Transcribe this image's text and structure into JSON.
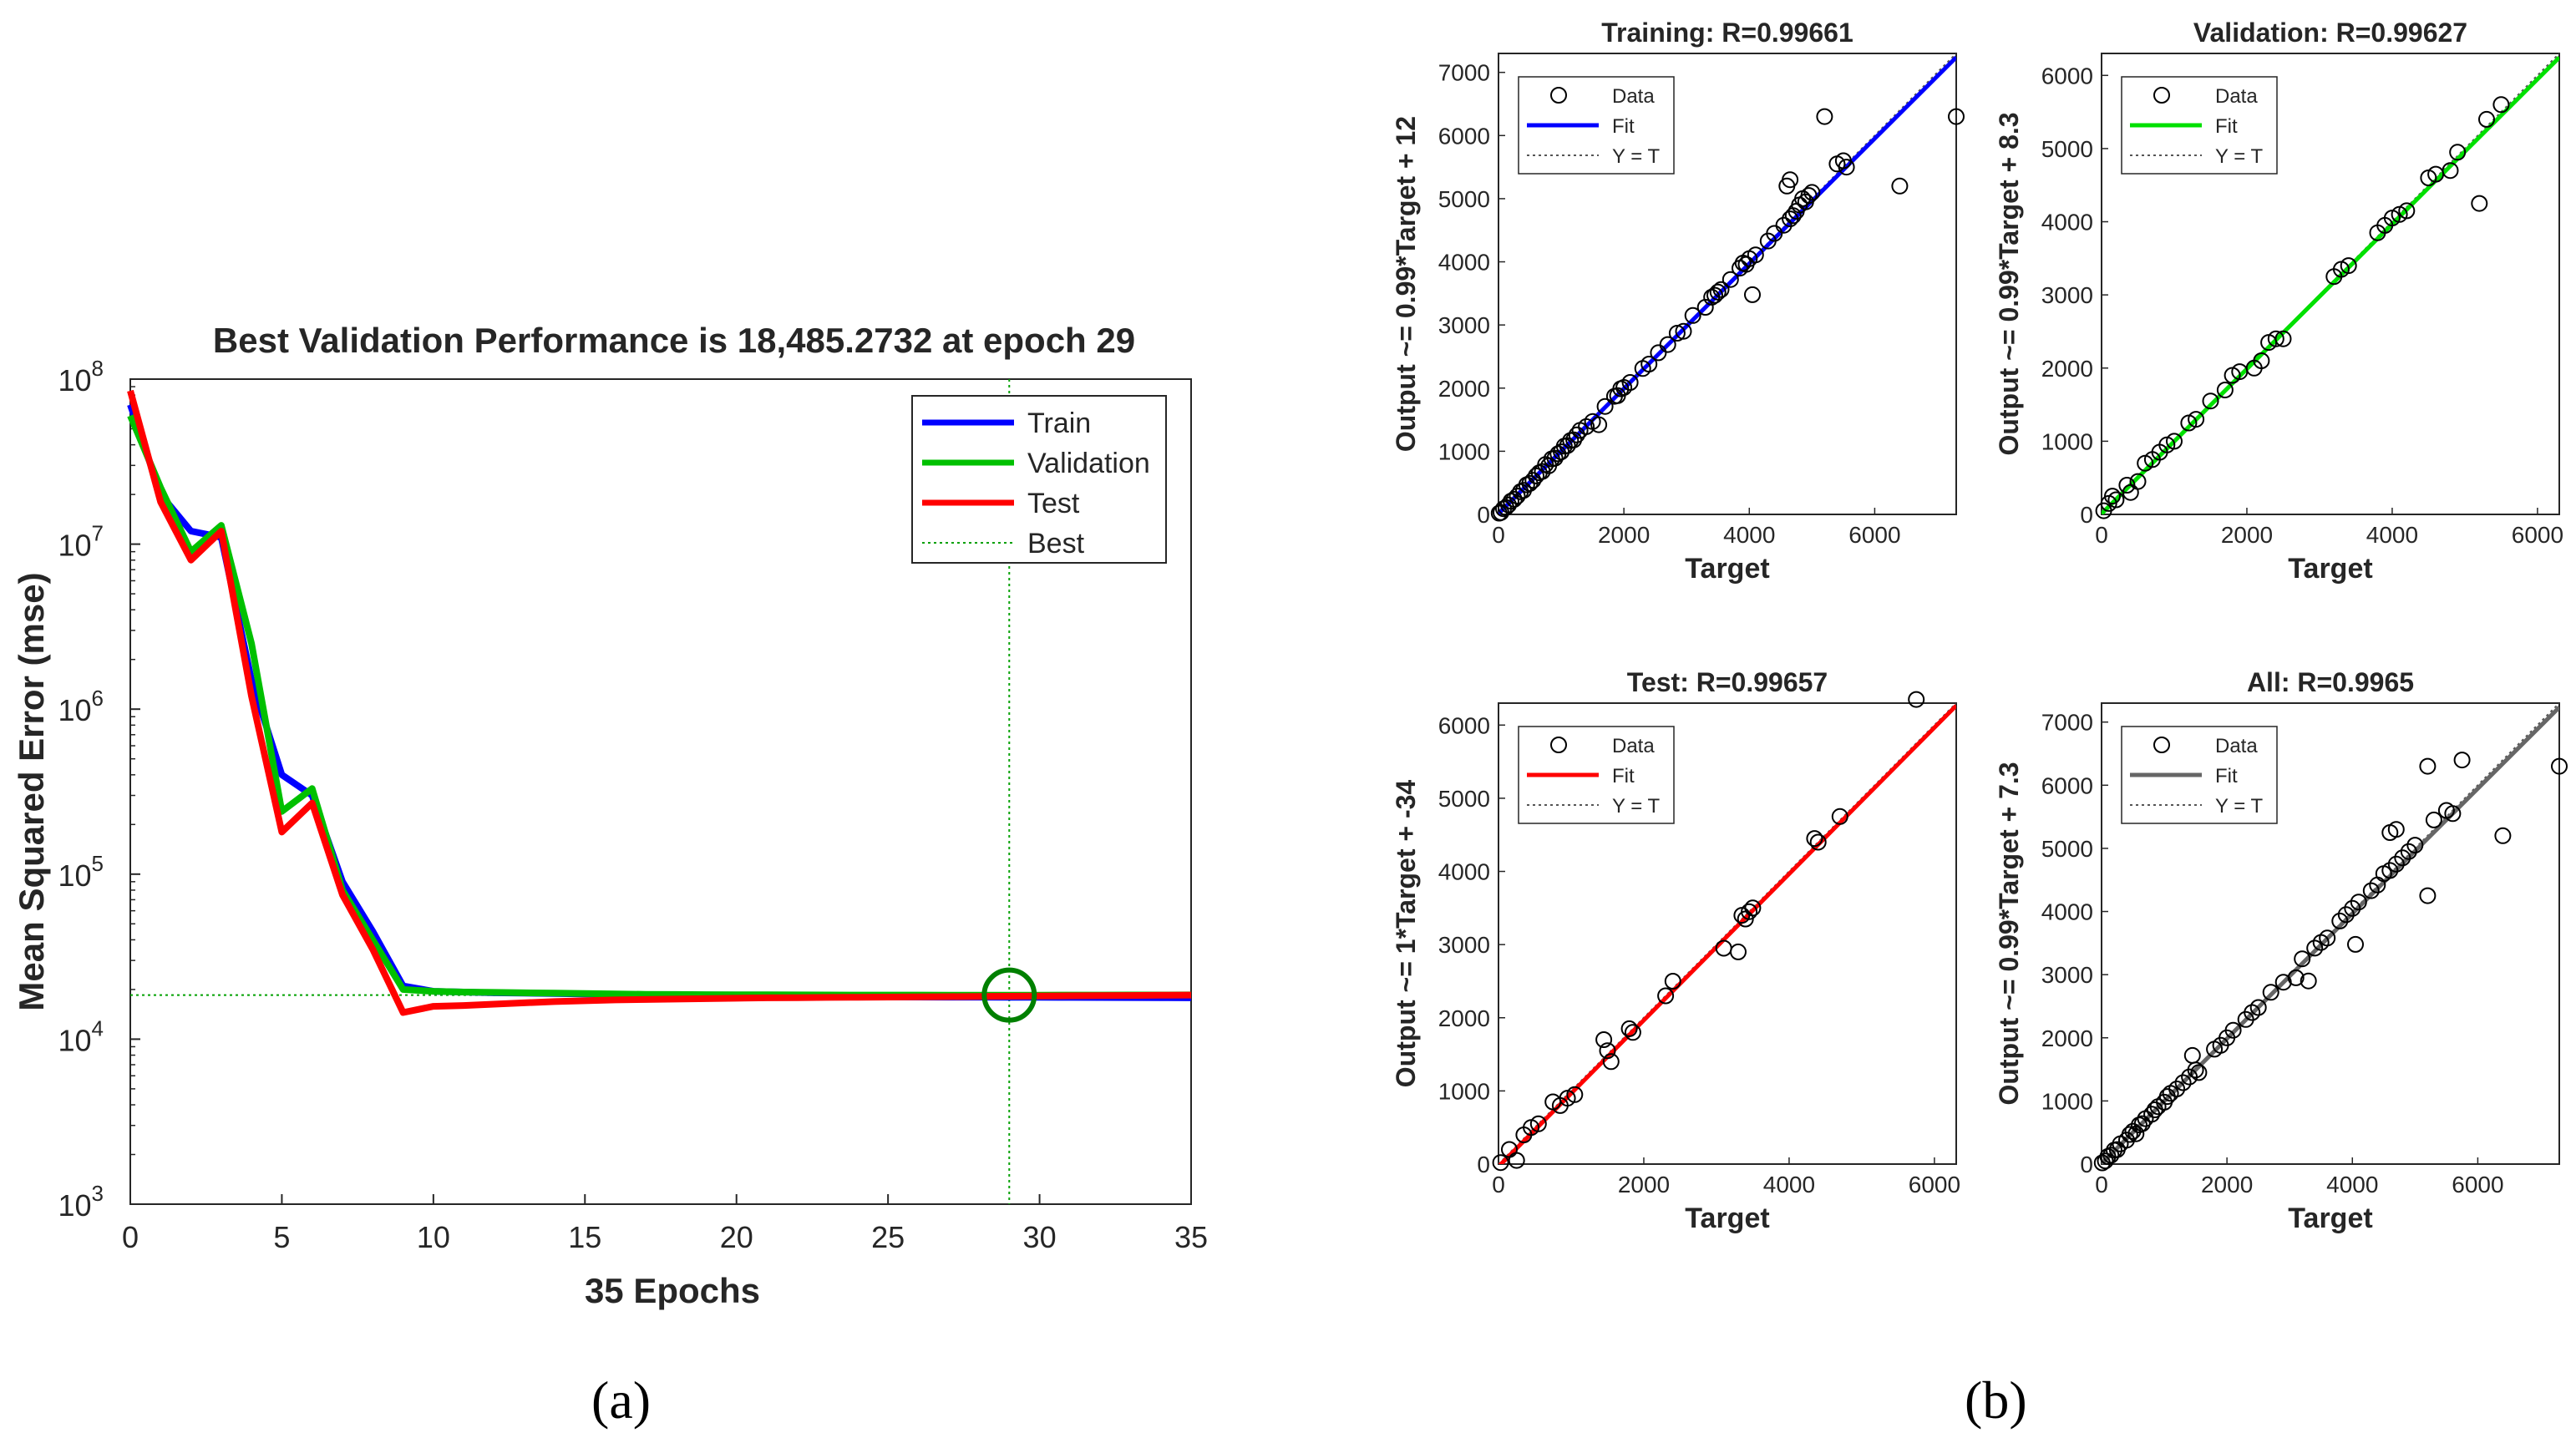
{
  "panel_labels": {
    "a": "(a)",
    "b": "(b)"
  },
  "chart_data": [
    {
      "id": "perf",
      "type": "line",
      "title": "Best Validation Performance is 18,485.2732 at epoch 29",
      "xlabel": "35 Epochs",
      "ylabel": "Mean Squared Error  (mse)",
      "yscale": "log",
      "xlim": [
        0,
        35
      ],
      "ylim": [
        1000,
        100000000
      ],
      "xticks": [
        0,
        5,
        10,
        15,
        20,
        25,
        30,
        35
      ],
      "yticks": [
        {
          "value": 1000,
          "base": "10",
          "exp": "3"
        },
        {
          "value": 10000,
          "base": "10",
          "exp": "4"
        },
        {
          "value": 100000,
          "base": "10",
          "exp": "5"
        },
        {
          "value": 1000000,
          "base": "10",
          "exp": "6"
        },
        {
          "value": 10000000,
          "base": "10",
          "exp": "7"
        },
        {
          "value": 100000000,
          "base": "10",
          "exp": "8"
        }
      ],
      "best": {
        "epoch": 29,
        "value": 18485.2732
      },
      "legend": [
        "Train",
        "Validation",
        "Test",
        "Best"
      ],
      "colors": {
        "Train": "#0000ff",
        "Validation": "#00c000",
        "Test": "#ff0000",
        "Best": "#00a000",
        "Circle": "#008000"
      },
      "x": [
        0,
        1,
        2,
        3,
        4,
        5,
        6,
        7,
        8,
        9,
        10,
        11,
        12,
        13,
        14,
        15,
        16,
        17,
        18,
        19,
        20,
        21,
        22,
        23,
        24,
        25,
        26,
        27,
        28,
        29,
        30,
        31,
        32,
        33,
        34,
        35
      ],
      "series": [
        {
          "name": "Train",
          "values": [
            70000000,
            20000000,
            12000000,
            11000000,
            1500000,
            400000,
            300000,
            90000,
            45000,
            21000,
            19500,
            19300,
            19100,
            19000,
            18900,
            18800,
            18700,
            18600,
            18500,
            18400,
            18300,
            18250,
            18200,
            18150,
            18100,
            18050,
            18000,
            17980,
            17960,
            17940,
            17920,
            17900,
            17880,
            17860,
            17840,
            17800
          ]
        },
        {
          "name": "Validation",
          "values": [
            60000000,
            22000000,
            9000000,
            13000000,
            2500000,
            240000,
            330000,
            80000,
            40000,
            20000,
            19500,
            19300,
            19200,
            19100,
            19000,
            18900,
            18800,
            18700,
            18650,
            18600,
            18580,
            18560,
            18540,
            18520,
            18510,
            18500,
            18495,
            18490,
            18487,
            18485,
            18490,
            18500,
            18510,
            18520,
            18530,
            18540
          ]
        },
        {
          "name": "Test",
          "values": [
            85000000,
            18000000,
            8000000,
            12000000,
            1200000,
            180000,
            270000,
            75000,
            35000,
            14500,
            15800,
            16000,
            16300,
            16600,
            16900,
            17100,
            17300,
            17400,
            17500,
            17600,
            17700,
            17800,
            17850,
            17900,
            17950,
            18000,
            18050,
            18100,
            18150,
            18200,
            18250,
            18300,
            18350,
            18400,
            18450,
            18500
          ]
        }
      ]
    },
    {
      "id": "reg-training",
      "type": "scatter",
      "title": "Training: R=0.99661",
      "xlabel": "Target",
      "ylabel": "Output ~= 0.99*Target + 12",
      "xlim": [
        0,
        7300
      ],
      "ylim": [
        0,
        7300
      ],
      "xticks": [
        0,
        2000,
        4000,
        6000
      ],
      "yticks": [
        0,
        1000,
        2000,
        3000,
        4000,
        5000,
        6000,
        7000
      ],
      "fit": {
        "slope": 0.99,
        "intercept": 12,
        "color": "#0000ff"
      },
      "legend": [
        "Data",
        "Fit",
        "Y = T"
      ],
      "points": [
        [
          10,
          20
        ],
        [
          40,
          30
        ],
        [
          80,
          90
        ],
        [
          120,
          110
        ],
        [
          160,
          150
        ],
        [
          200,
          210
        ],
        [
          250,
          240
        ],
        [
          300,
          290
        ],
        [
          350,
          360
        ],
        [
          400,
          380
        ],
        [
          450,
          470
        ],
        [
          500,
          490
        ],
        [
          550,
          540
        ],
        [
          600,
          610
        ],
        [
          650,
          660
        ],
        [
          700,
          680
        ],
        [
          750,
          790
        ],
        [
          800,
          770
        ],
        [
          850,
          880
        ],
        [
          900,
          890
        ],
        [
          950,
          960
        ],
        [
          1000,
          990
        ],
        [
          1050,
          1080
        ],
        [
          1100,
          1090
        ],
        [
          1150,
          1170
        ],
        [
          1200,
          1180
        ],
        [
          1250,
          1260
        ],
        [
          1300,
          1330
        ],
        [
          1400,
          1390
        ],
        [
          1500,
          1470
        ],
        [
          1600,
          1420
        ],
        [
          1700,
          1710
        ],
        [
          1850,
          1870
        ],
        [
          1900,
          1880
        ],
        [
          1950,
          1990
        ],
        [
          2000,
          2010
        ],
        [
          2100,
          2090
        ],
        [
          2300,
          2310
        ],
        [
          2400,
          2380
        ],
        [
          2550,
          2560
        ],
        [
          2700,
          2690
        ],
        [
          2850,
          2870
        ],
        [
          2950,
          2900
        ],
        [
          3100,
          3150
        ],
        [
          3300,
          3280
        ],
        [
          3400,
          3440
        ],
        [
          3450,
          3470
        ],
        [
          3500,
          3520
        ],
        [
          3550,
          3560
        ],
        [
          3700,
          3720
        ],
        [
          3850,
          3900
        ],
        [
          3900,
          3980
        ],
        [
          3950,
          3960
        ],
        [
          4000,
          4050
        ],
        [
          4050,
          3480
        ],
        [
          4100,
          4110
        ],
        [
          4300,
          4330
        ],
        [
          4400,
          4450
        ],
        [
          4550,
          4580
        ],
        [
          4650,
          4680
        ],
        [
          4700,
          4730
        ],
        [
          4750,
          4800
        ],
        [
          4800,
          4900
        ],
        [
          4850,
          5000
        ],
        [
          4900,
          4950
        ],
        [
          4950,
          5050
        ],
        [
          5000,
          5100
        ],
        [
          4600,
          5200
        ],
        [
          4650,
          5300
        ],
        [
          5200,
          6300
        ],
        [
          5400,
          5550
        ],
        [
          5500,
          5600
        ],
        [
          5550,
          5500
        ],
        [
          6400,
          5200
        ],
        [
          7300,
          6300
        ]
      ]
    },
    {
      "id": "reg-validation",
      "type": "scatter",
      "title": "Validation: R=0.99627",
      "xlabel": "Target",
      "ylabel": "Output ~= 0.99*Target + 8.3",
      "xlim": [
        0,
        6300
      ],
      "ylim": [
        0,
        6300
      ],
      "xticks": [
        0,
        2000,
        4000,
        6000
      ],
      "yticks": [
        0,
        1000,
        2000,
        3000,
        4000,
        5000,
        6000
      ],
      "fit": {
        "slope": 0.99,
        "intercept": 8.3,
        "color": "#00e000"
      },
      "legend": [
        "Data",
        "Fit",
        "Y = T"
      ],
      "points": [
        [
          30,
          50
        ],
        [
          100,
          150
        ],
        [
          150,
          250
        ],
        [
          200,
          200
        ],
        [
          350,
          400
        ],
        [
          400,
          300
        ],
        [
          500,
          450
        ],
        [
          600,
          700
        ],
        [
          700,
          750
        ],
        [
          800,
          850
        ],
        [
          900,
          950
        ],
        [
          1000,
          1000
        ],
        [
          1200,
          1250
        ],
        [
          1300,
          1300
        ],
        [
          1500,
          1550
        ],
        [
          1700,
          1700
        ],
        [
          1800,
          1900
        ],
        [
          1900,
          1950
        ],
        [
          2100,
          2000
        ],
        [
          2200,
          2100
        ],
        [
          2300,
          2350
        ],
        [
          2400,
          2400
        ],
        [
          2500,
          2400
        ],
        [
          3200,
          3250
        ],
        [
          3300,
          3350
        ],
        [
          3400,
          3400
        ],
        [
          3800,
          3850
        ],
        [
          3900,
          3950
        ],
        [
          4000,
          4050
        ],
        [
          4100,
          4100
        ],
        [
          4200,
          4150
        ],
        [
          4500,
          4600
        ],
        [
          4600,
          4650
        ],
        [
          4800,
          4700
        ],
        [
          4900,
          4950
        ],
        [
          5200,
          4250
        ],
        [
          5300,
          5400
        ],
        [
          5500,
          5600
        ]
      ]
    },
    {
      "id": "reg-test",
      "type": "scatter",
      "title": "Test: R=0.99657",
      "xlabel": "Target",
      "ylabel": "Output ~= 1*Target + -34",
      "xlim": [
        0,
        6300
      ],
      "ylim": [
        0,
        6300
      ],
      "xticks": [
        0,
        2000,
        4000,
        6000
      ],
      "yticks": [
        0,
        1000,
        2000,
        3000,
        4000,
        5000,
        6000
      ],
      "fit": {
        "slope": 1.0,
        "intercept": -34,
        "color": "#ff0000"
      },
      "legend": [
        "Data",
        "Fit",
        "Y = T"
      ],
      "points": [
        [
          30,
          20
        ],
        [
          150,
          200
        ],
        [
          250,
          50
        ],
        [
          350,
          400
        ],
        [
          450,
          500
        ],
        [
          550,
          550
        ],
        [
          750,
          850
        ],
        [
          850,
          800
        ],
        [
          950,
          900
        ],
        [
          1050,
          950
        ],
        [
          1450,
          1700
        ],
        [
          1500,
          1550
        ],
        [
          1550,
          1400
        ],
        [
          1800,
          1850
        ],
        [
          1850,
          1800
        ],
        [
          2300,
          2300
        ],
        [
          2400,
          2500
        ],
        [
          3100,
          2950
        ],
        [
          3300,
          2900
        ],
        [
          3350,
          3400
        ],
        [
          3400,
          3350
        ],
        [
          3450,
          3450
        ],
        [
          3500,
          3500
        ],
        [
          4350,
          4450
        ],
        [
          4400,
          4400
        ],
        [
          4700,
          4750
        ],
        [
          5750,
          6350
        ]
      ]
    },
    {
      "id": "reg-all",
      "type": "scatter",
      "title": "All: R=0.9965",
      "xlabel": "Target",
      "ylabel": "Output ~= 0.99*Target + 7.3",
      "xlim": [
        0,
        7300
      ],
      "ylim": [
        0,
        7300
      ],
      "xticks": [
        0,
        2000,
        4000,
        6000
      ],
      "yticks": [
        0,
        1000,
        2000,
        3000,
        4000,
        5000,
        6000,
        7000
      ],
      "fit": {
        "slope": 0.99,
        "intercept": 7.3,
        "color": "#666666"
      },
      "legend": [
        "Data",
        "Fit",
        "Y = T"
      ],
      "points": [
        [
          10,
          20
        ],
        [
          60,
          50
        ],
        [
          100,
          120
        ],
        [
          150,
          140
        ],
        [
          200,
          220
        ],
        [
          250,
          230
        ],
        [
          300,
          320
        ],
        [
          400,
          380
        ],
        [
          450,
          470
        ],
        [
          500,
          520
        ],
        [
          550,
          480
        ],
        [
          600,
          620
        ],
        [
          650,
          640
        ],
        [
          700,
          720
        ],
        [
          800,
          790
        ],
        [
          850,
          860
        ],
        [
          900,
          910
        ],
        [
          1000,
          980
        ],
        [
          1050,
          1070
        ],
        [
          1100,
          1120
        ],
        [
          1200,
          1190
        ],
        [
          1300,
          1290
        ],
        [
          1400,
          1380
        ],
        [
          1450,
          1720
        ],
        [
          1500,
          1490
        ],
        [
          1550,
          1450
        ],
        [
          1800,
          1820
        ],
        [
          1900,
          1880
        ],
        [
          2000,
          2000
        ],
        [
          2100,
          2120
        ],
        [
          2300,
          2290
        ],
        [
          2400,
          2400
        ],
        [
          2500,
          2480
        ],
        [
          2700,
          2720
        ],
        [
          2900,
          2880
        ],
        [
          3100,
          2950
        ],
        [
          3200,
          3250
        ],
        [
          3300,
          2900
        ],
        [
          3400,
          3420
        ],
        [
          3500,
          3510
        ],
        [
          3600,
          3580
        ],
        [
          3800,
          3850
        ],
        [
          3900,
          3950
        ],
        [
          4000,
          4050
        ],
        [
          4050,
          3480
        ],
        [
          4100,
          4150
        ],
        [
          4300,
          4330
        ],
        [
          4400,
          4420
        ],
        [
          4500,
          4600
        ],
        [
          4600,
          4650
        ],
        [
          4700,
          4750
        ],
        [
          4800,
          4850
        ],
        [
          4900,
          4950
        ],
        [
          5000,
          5050
        ],
        [
          4600,
          5250
        ],
        [
          4700,
          5300
        ],
        [
          5200,
          4250
        ],
        [
          5300,
          5450
        ],
        [
          5200,
          6300
        ],
        [
          5500,
          5600
        ],
        [
          5600,
          5550
        ],
        [
          5750,
          6400
        ],
        [
          6400,
          5200
        ],
        [
          7300,
          6300
        ]
      ]
    }
  ]
}
